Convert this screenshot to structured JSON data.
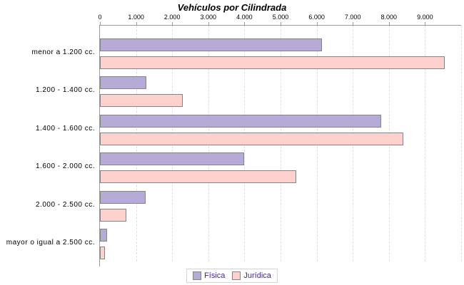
{
  "title": "Vehículos por Cilindrada",
  "legend": {
    "items": [
      {
        "label": "Física",
        "color": "#b5abd6"
      },
      {
        "label": "Jurídica",
        "color": "#fcd1ce"
      }
    ]
  },
  "colors": {
    "bar_border": "#848484",
    "axis": "#9a9a9a",
    "gridline": "#dedede",
    "legend_text": "#40277f",
    "background": "#ffffff"
  },
  "chart_data": {
    "type": "bar",
    "orientation": "horizontal",
    "title": "Vehículos por Cilindrada",
    "categories": [
      "menor a 1.200 cc.",
      "1.200 - 1.400 cc.",
      "1.400 - 1.600 cc.",
      "1.600 - 2.000 cc.",
      "2.000 - 2.500 cc.",
      "mayor o igual a 2.500 cc."
    ],
    "series": [
      {
        "name": "Física",
        "color": "#b5abd6",
        "values": [
          6100,
          1250,
          7750,
          3950,
          1220,
          150
        ]
      },
      {
        "name": "Jurídica",
        "color": "#fcd1ce",
        "values": [
          9500,
          2250,
          8350,
          5400,
          700,
          100
        ]
      }
    ],
    "xlim": [
      0,
      10000
    ],
    "xticks": [
      0,
      1000,
      2000,
      3000,
      4000,
      5000,
      6000,
      7000,
      8000,
      9000
    ],
    "xtick_labels": [
      "0",
      "1.000",
      "2.000",
      "3.000",
      "4.000",
      "5.000",
      "6.000",
      "7.000",
      "8.000",
      "9.000"
    ],
    "grid": "vertical-dashed",
    "axis_position": "top",
    "legend_position": "bottom"
  }
}
